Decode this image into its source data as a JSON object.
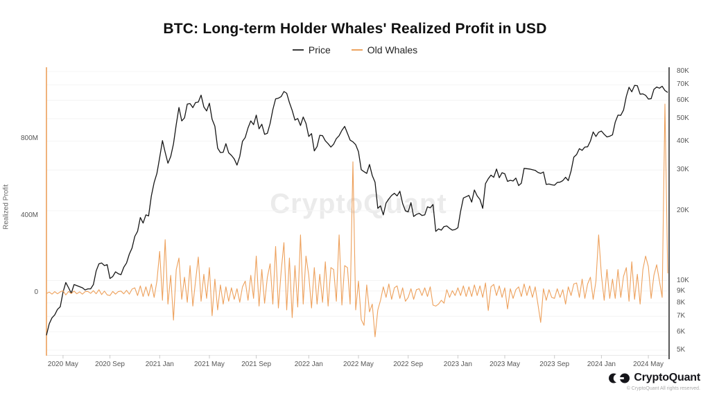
{
  "title": "BTC: Long-term Holder Whales' Realized Profit in USD",
  "legend": [
    {
      "label": "Price",
      "color": "#3a3a3a"
    },
    {
      "label": "Old Whales",
      "color": "#EDA35F"
    }
  ],
  "watermark": "CryptoQuant",
  "footer": {
    "brand": "CryptoQuant",
    "copyright": "© CryptoQuant All rights reserved."
  },
  "chart_data": {
    "type": "line",
    "title": "BTC: Long-term Holder Whales' Realized Profit in USD",
    "x_start": "2020 Mar",
    "x_end": "2024 Jun",
    "cadence": "weekly",
    "grid": "horizontal, aligned to right log axis",
    "legend_position": "top-center",
    "left_axis": {
      "title": "Realized Profit",
      "scale": "linear",
      "unit": "USD",
      "ticks": [
        {
          "label": "800M",
          "value": 800
        },
        {
          "label": "400M",
          "value": 400
        },
        {
          "label": "0",
          "value": 0
        }
      ]
    },
    "right_axis": {
      "title": "",
      "scale": "log",
      "unit": "USD",
      "range": [
        5000,
        80000
      ],
      "ticks": [
        {
          "label": "80K",
          "value": 80
        },
        {
          "label": "70K",
          "value": 70
        },
        {
          "label": "60K",
          "value": 60
        },
        {
          "label": "50K",
          "value": 50
        },
        {
          "label": "40K",
          "value": 40
        },
        {
          "label": "30K",
          "value": 30
        },
        {
          "label": "20K",
          "value": 20
        },
        {
          "label": "10K",
          "value": 10
        },
        {
          "label": "9K",
          "value": 9
        },
        {
          "label": "8K",
          "value": 8
        },
        {
          "label": "7K",
          "value": 7
        },
        {
          "label": "6K",
          "value": 6
        },
        {
          "label": "5K",
          "value": 5
        }
      ]
    },
    "x_ticks": [
      {
        "label": "2020 May",
        "index": 6
      },
      {
        "label": "2020 Sep",
        "index": 23
      },
      {
        "label": "2021 Jan",
        "index": 41
      },
      {
        "label": "2021 May",
        "index": 59
      },
      {
        "label": "2021 Sep",
        "index": 76
      },
      {
        "label": "2022 Jan",
        "index": 95
      },
      {
        "label": "2022 May",
        "index": 113
      },
      {
        "label": "2022 Sep",
        "index": 131
      },
      {
        "label": "2023 Jan",
        "index": 149
      },
      {
        "label": "2023 May",
        "index": 166
      },
      {
        "label": "2023 Sep",
        "index": 184
      },
      {
        "label": "2024 Jan",
        "index": 201
      },
      {
        "label": "2024 May",
        "index": 218
      }
    ],
    "series": [
      {
        "name": "Price",
        "axis": "right",
        "unit": "thousand USD",
        "color": "#161616",
        "values": [
          5.8,
          6.5,
          6.9,
          7.1,
          7.5,
          7.7,
          8.9,
          9.8,
          9.3,
          8.8,
          9.6,
          9.5,
          9.4,
          9.3,
          9.1,
          9.2,
          9.2,
          9.6,
          11.0,
          11.8,
          11.9,
          11.6,
          11.7,
          10.2,
          10.4,
          10.9,
          10.7,
          10.6,
          11.4,
          11.9,
          13.0,
          13.8,
          15.5,
          16.3,
          18.7,
          17.7,
          19.2,
          19.0,
          23.2,
          26.5,
          29.0,
          34.0,
          40.2,
          35.8,
          32.1,
          34.3,
          38.9,
          47.2,
          55.9,
          48.9,
          50.4,
          57.8,
          58.1,
          55.8,
          58.7,
          59.0,
          63.2,
          56.2,
          54.0,
          58.3,
          49.7,
          46.4,
          37.3,
          35.7,
          35.8,
          39.0,
          35.6,
          34.7,
          33.5,
          31.5,
          34.3,
          39.9,
          41.5,
          45.6,
          48.9,
          47.1,
          51.8,
          45.2,
          47.3,
          42.8,
          43.2,
          47.7,
          54.7,
          60.9,
          61.3,
          62.3,
          65.5,
          64.4,
          58.7,
          54.3,
          49.3,
          50.1,
          46.7,
          50.8,
          47.7,
          41.9,
          43.1,
          36.3,
          37.9,
          42.4,
          42.2,
          40.1,
          39.0,
          37.7,
          38.8,
          41.0,
          42.2,
          44.5,
          46.3,
          43.2,
          40.4,
          39.7,
          38.6,
          36.0,
          30.1,
          29.5,
          29.0,
          31.7,
          28.4,
          26.6,
          20.5,
          21.0,
          19.2,
          21.6,
          22.5,
          23.3,
          23.8,
          23.2,
          24.3,
          21.5,
          20.0,
          19.8,
          21.7,
          18.9,
          19.3,
          19.5,
          19.1,
          19.2,
          20.8,
          20.6,
          21.3,
          16.3,
          16.7,
          16.5,
          17.1,
          17.2,
          16.8,
          16.5,
          16.6,
          16.9,
          19.9,
          22.7,
          23.0,
          23.3,
          21.8,
          24.6,
          23.2,
          22.4,
          20.5,
          26.2,
          27.5,
          28.5,
          27.9,
          30.3,
          27.8,
          29.2,
          28.9,
          26.8,
          27.1,
          26.9,
          27.7,
          25.7,
          26.3,
          30.5,
          30.4,
          30.3,
          30.1,
          29.9,
          29.3,
          29.0,
          29.4,
          26.0,
          26.1,
          25.9,
          25.8,
          26.5,
          26.6,
          27.0,
          27.9,
          27.0,
          29.7,
          34.1,
          35.0,
          37.1,
          36.5,
          37.7,
          37.8,
          40.0,
          43.8,
          41.9,
          43.7,
          44.2,
          42.8,
          41.7,
          42.0,
          42.6,
          48.3,
          51.8,
          51.7,
          54.5,
          62.4,
          68.3,
          65.3,
          69.6,
          69.4,
          63.8,
          64.0,
          63.1,
          60.8,
          61.0,
          66.9,
          68.5,
          67.7,
          69.0,
          66.2,
          64.9
        ]
      },
      {
        "name": "Old Whales",
        "axis": "left",
        "unit": "million USD",
        "color": "#EDA05B",
        "values": [
          -5,
          3,
          -8,
          5,
          -6,
          4,
          10,
          -12,
          6,
          -5,
          8,
          -6,
          4,
          -8,
          5,
          6,
          -4,
          10,
          -6,
          15,
          -10,
          8,
          -12,
          -15,
          6,
          -8,
          5,
          8,
          -6,
          12,
          -8,
          18,
          25,
          -15,
          35,
          -20,
          30,
          -18,
          45,
          -25,
          60,
          214,
          -40,
          275,
          -60,
          90,
          -143,
          120,
          180,
          -35,
          80,
          -50,
          140,
          -70,
          60,
          185,
          -45,
          95,
          -30,
          130,
          -120,
          70,
          -90,
          40,
          -60,
          30,
          -45,
          25,
          -35,
          20,
          -50,
          30,
          60,
          -40,
          90,
          -30,
          190,
          -70,
          120,
          -55,
          80,
          150,
          -60,
          240,
          -80,
          110,
          260,
          -90,
          180,
          -130,
          140,
          -75,
          300,
          -60,
          190,
          90,
          -80,
          130,
          -60,
          95,
          -50,
          160,
          -70,
          130,
          120,
          -45,
          300,
          -65,
          140,
          130,
          -60,
          680,
          -90,
          60,
          -140,
          -170,
          40,
          -100,
          -60,
          -230,
          -90,
          -40,
          30,
          -25,
          45,
          -35,
          25,
          35,
          -30,
          25,
          -45,
          -25,
          20,
          -35,
          15,
          20,
          -15,
          25,
          -20,
          30,
          -65,
          -70,
          -60,
          -40,
          -55,
          15,
          -25,
          10,
          -15,
          25,
          -15,
          35,
          -20,
          30,
          -20,
          40,
          -15,
          35,
          -25,
          50,
          -93,
          30,
          43,
          -15,
          35,
          -25,
          25,
          -85,
          20,
          -30,
          15,
          30,
          -20,
          45,
          -15,
          35,
          -25,
          30,
          -60,
          -155,
          20,
          -40,
          15,
          -25,
          -30,
          20,
          -25,
          15,
          -60,
          30,
          -15,
          45,
          50,
          -25,
          70,
          -30,
          45,
          80,
          -35,
          60,
          300,
          90,
          -40,
          120,
          -30,
          70,
          -30,
          120,
          -25,
          85,
          130,
          -45,
          160,
          -35,
          95,
          -60,
          120,
          190,
          135,
          -30,
          90,
          145,
          60,
          -25,
          980,
          100
        ]
      }
    ]
  }
}
